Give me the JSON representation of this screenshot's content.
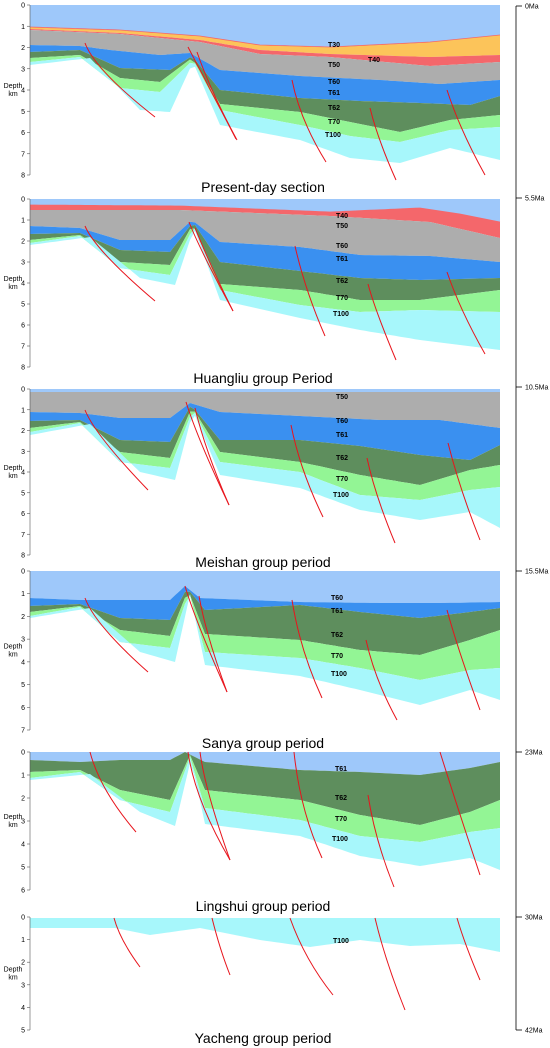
{
  "depth_axis": {
    "title": "Depth",
    "unit": "km"
  },
  "time_axis": {
    "labels": [
      "0Ma",
      "5.5Ma",
      "10.5Ma",
      "15.5Ma",
      "23Ma",
      "30Ma",
      "42Ma"
    ]
  },
  "colors": {
    "water": "#9ec8fa",
    "T30": "#fcc45a",
    "T40": "#f4676b",
    "T50": "#adadad",
    "T60": "#3a90f0",
    "T61": "#5e8e5d",
    "T62": "#93f595",
    "T70": "#a7f7fb",
    "fault": "#e8141c"
  },
  "panels": [
    {
      "caption": "Present-day section",
      "depth_ticks": [
        "0",
        "1",
        "2",
        "3",
        "4",
        "5",
        "6",
        "7",
        "8"
      ],
      "horizons": [
        "T30",
        "T40",
        "T50",
        "T60",
        "T61",
        "T62",
        "T70",
        "T100"
      ]
    },
    {
      "caption": "Huangliu group Period",
      "depth_ticks": [
        "0",
        "1",
        "2",
        "3",
        "4",
        "5",
        "6",
        "7",
        "8"
      ],
      "horizons": [
        "T40",
        "T50",
        "T60",
        "T61",
        "T62",
        "T70",
        "T100"
      ]
    },
    {
      "caption": "Meishan group period",
      "depth_ticks": [
        "0",
        "1",
        "2",
        "3",
        "4",
        "5",
        "6",
        "7",
        "8"
      ],
      "horizons": [
        "T50",
        "T60",
        "T61",
        "T62",
        "T70",
        "T100"
      ]
    },
    {
      "caption": "Sanya group period",
      "depth_ticks": [
        "0",
        "1",
        "2",
        "3",
        "4",
        "5",
        "6",
        "7"
      ],
      "horizons": [
        "T60",
        "T61",
        "T62",
        "T70",
        "T100"
      ]
    },
    {
      "caption": "Lingshui group period",
      "depth_ticks": [
        "0",
        "1",
        "2",
        "3",
        "4",
        "5",
        "6"
      ],
      "horizons": [
        "T61",
        "T62",
        "T70",
        "T100"
      ]
    },
    {
      "caption": "Yacheng group period",
      "depth_ticks": [
        "0",
        "1",
        "2",
        "3",
        "4",
        "5"
      ],
      "horizons": [
        "T100"
      ]
    }
  ]
}
